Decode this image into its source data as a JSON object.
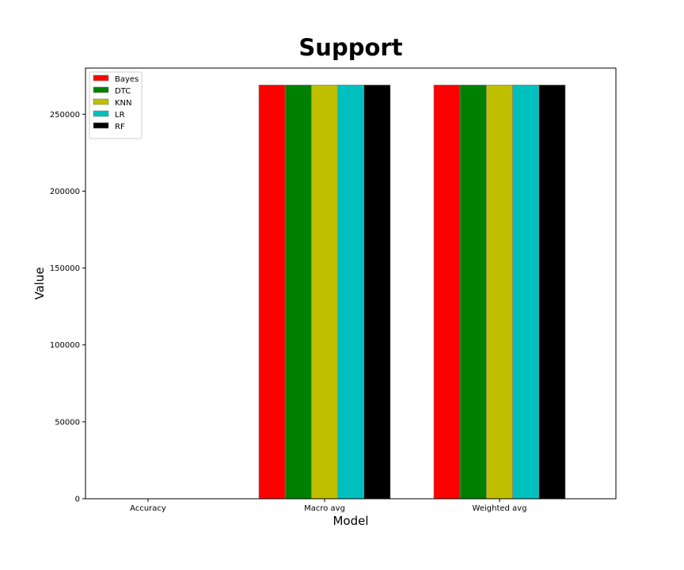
{
  "chart_data": {
    "type": "bar",
    "title": "Support",
    "xlabel": "Model",
    "ylabel": "Value",
    "categories": [
      "Accuracy",
      "Macro avg",
      "Weighted avg"
    ],
    "ylim": [
      0,
      280000
    ],
    "yticks": [
      0,
      50000,
      100000,
      150000,
      200000,
      250000
    ],
    "grid": false,
    "legend_position": "top-left",
    "series": [
      {
        "name": "Bayes",
        "color": "#ff0000",
        "values": [
          0,
          269000,
          269000
        ]
      },
      {
        "name": "DTC",
        "color": "#008000",
        "values": [
          0,
          269000,
          269000
        ]
      },
      {
        "name": "KNN",
        "color": "#bfbf00",
        "values": [
          0,
          269000,
          269000
        ]
      },
      {
        "name": "LR",
        "color": "#00bfbf",
        "values": [
          0,
          269000,
          269000
        ]
      },
      {
        "name": "RF",
        "color": "#000000",
        "values": [
          0,
          269000,
          269000
        ]
      }
    ]
  }
}
